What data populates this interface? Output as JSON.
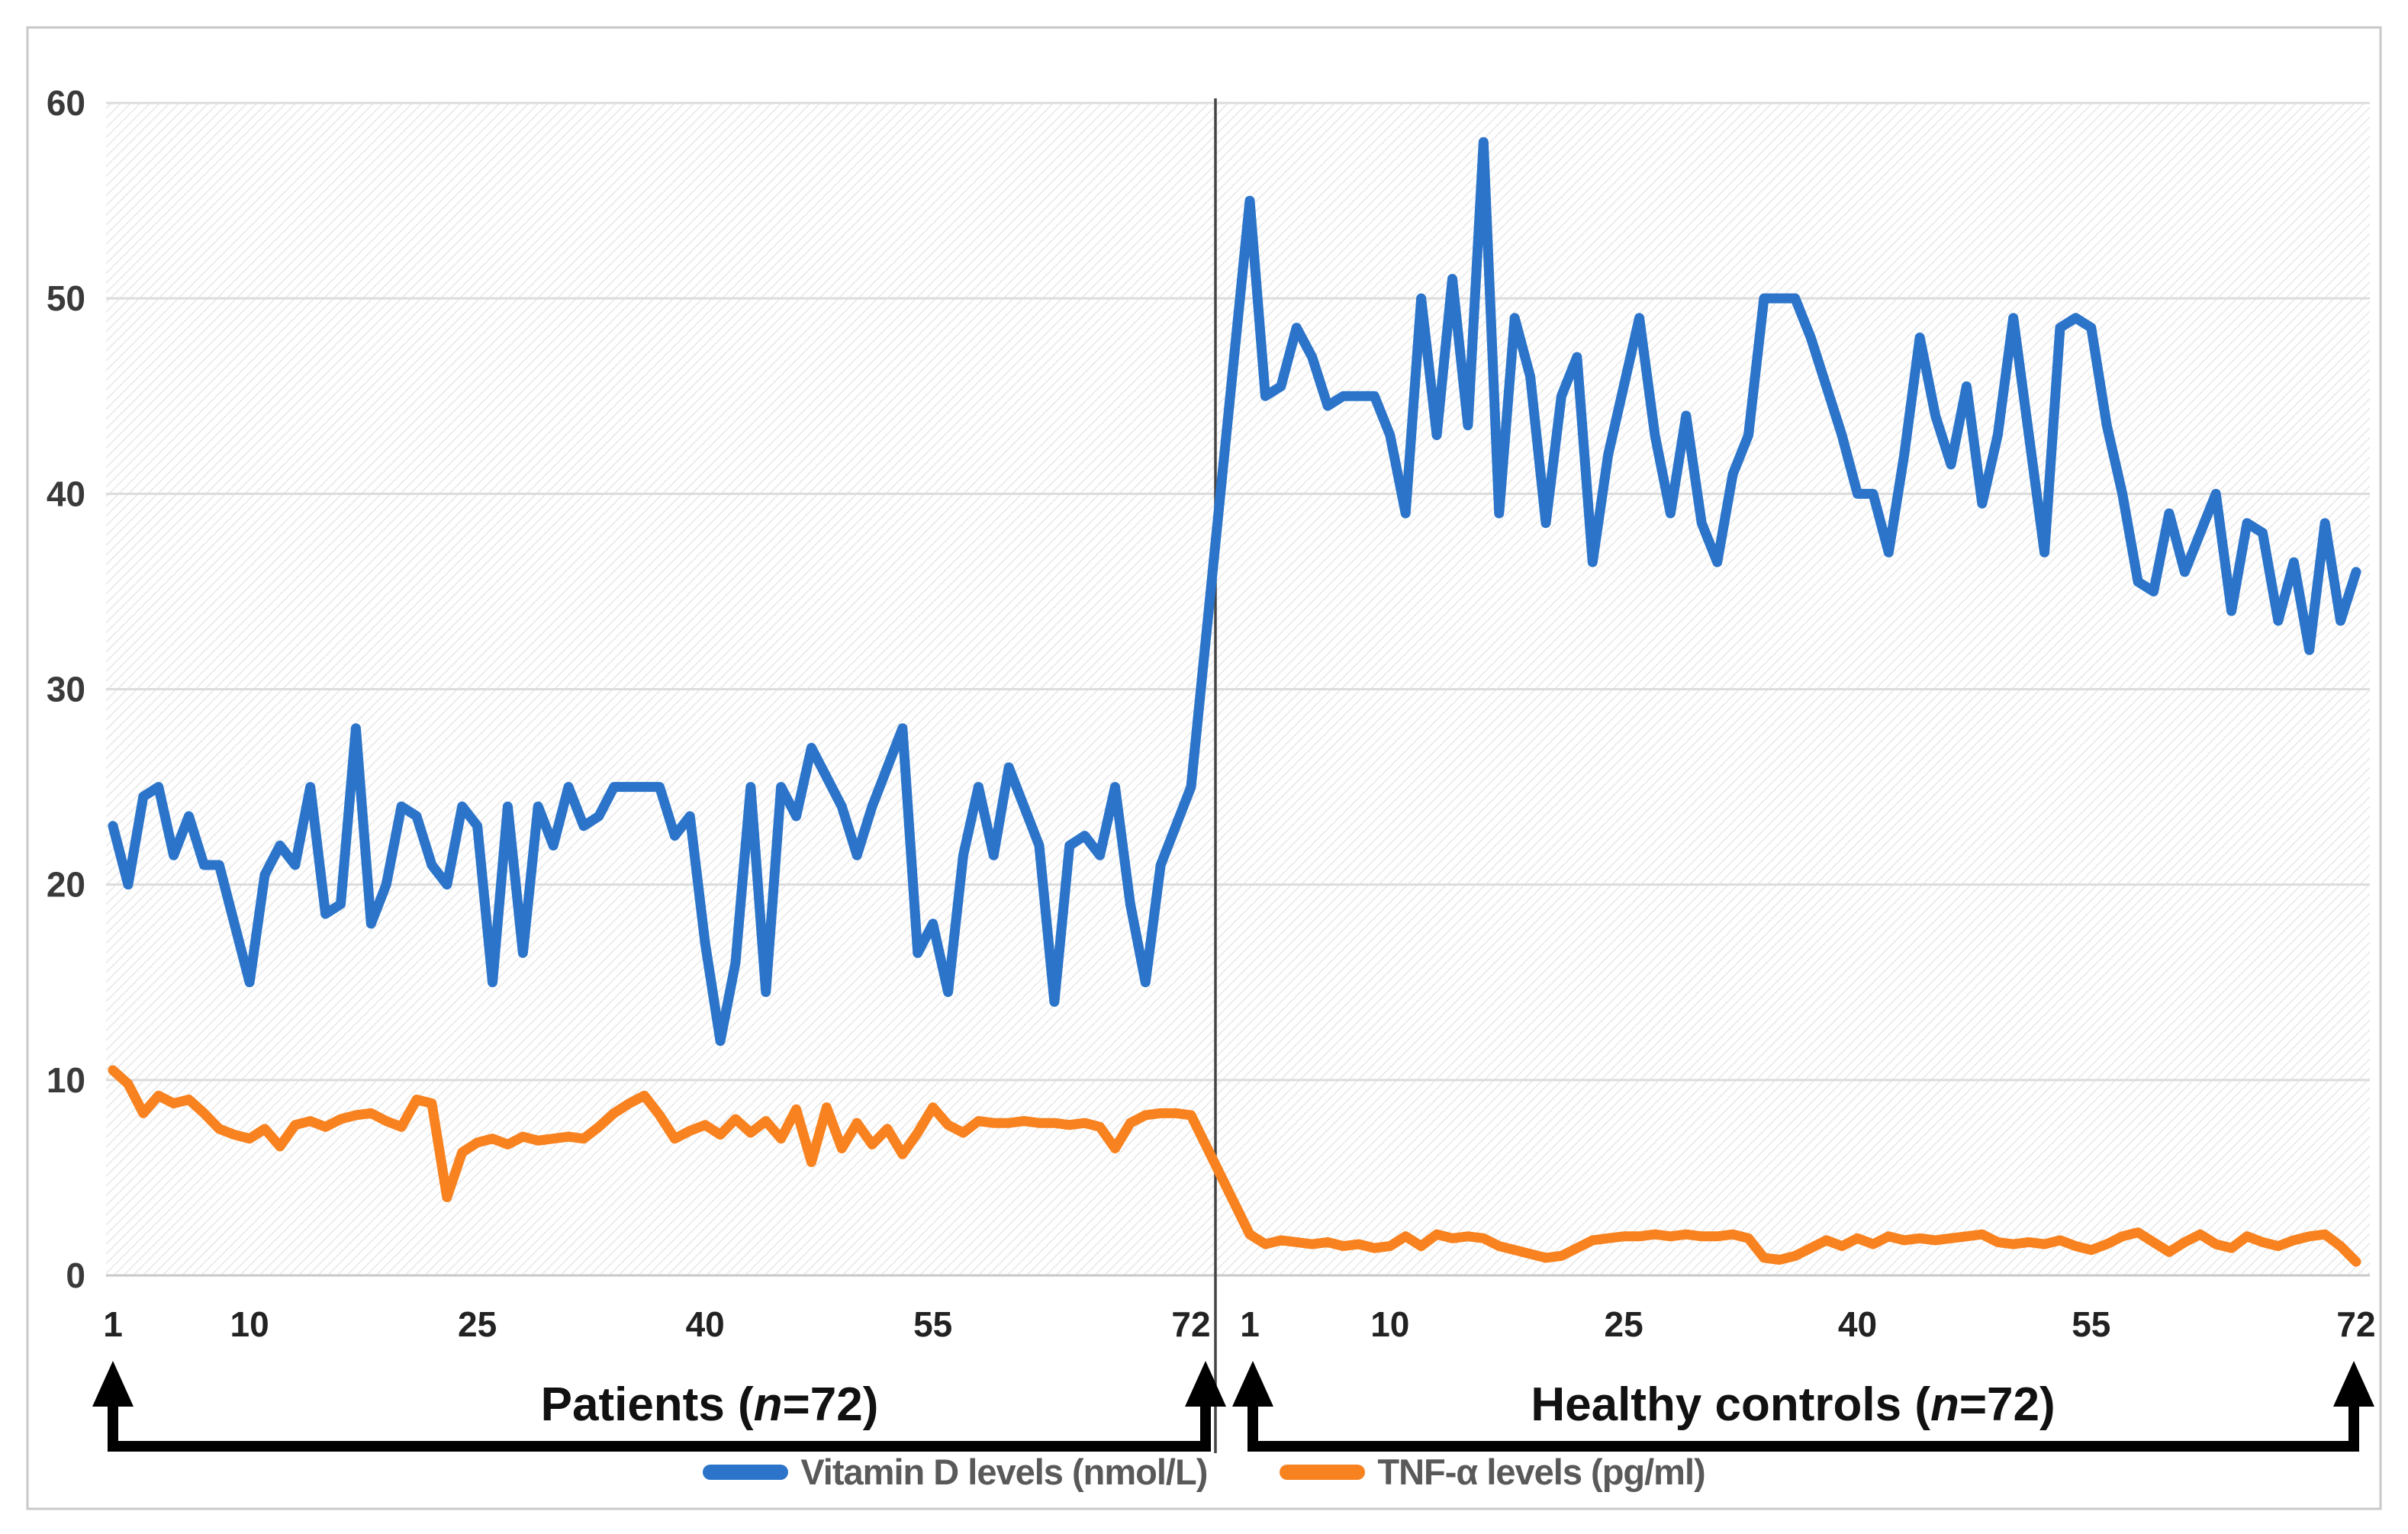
{
  "chart_data": {
    "type": "line",
    "title": "",
    "ylabel": "",
    "xlabel": "",
    "ylim": [
      0,
      60
    ],
    "yticks": [
      60,
      50,
      40,
      30,
      20,
      10,
      0
    ],
    "grid": true,
    "legend_position": "bottom",
    "colors": {
      "vitamin_d": "#2B74C9",
      "tnf": "#F8821F",
      "gridline": "#DCDCDC",
      "hatch": "#E7E7E7",
      "axis_text": "#3A3A3A",
      "group_label_text": "#111111",
      "legend_text": "#595959",
      "divider": "#444444",
      "arrow": "#000000",
      "border": "#C8C8C8"
    },
    "legend": [
      "Vitamin D levels (nmol/L)",
      "TNF-α levels (pg/ml)"
    ],
    "groups": [
      {
        "label_before": "Patients (",
        "label_italic": "n",
        "label_after": "=72)",
        "n": 72,
        "xticks": [
          1,
          10,
          25,
          40,
          55,
          72
        ],
        "series": [
          {
            "name": "Vitamin D levels (nmol/L)",
            "values": [
              23,
              20,
              24.5,
              25,
              21.5,
              23.5,
              21,
              21,
              18,
              15,
              20.5,
              22,
              21,
              25,
              18.5,
              19,
              28,
              18,
              20,
              24,
              23.5,
              21,
              20,
              24,
              23,
              15,
              24,
              16.5,
              24,
              22,
              25,
              23,
              23.5,
              25,
              25,
              25,
              25,
              22.5,
              23.5,
              17,
              12,
              16,
              25,
              14.5,
              25,
              23.5,
              27,
              25.5,
              24,
              21.5,
              24,
              26,
              28,
              16.5,
              18,
              14.5,
              21.5,
              25,
              21.5,
              26,
              24,
              22,
              14,
              22,
              22.5,
              21.5,
              25,
              19,
              15,
              21,
              23,
              25
            ]
          },
          {
            "name": "TNF-α levels (pg/ml)",
            "values": [
              10.5,
              9.8,
              8.3,
              9.2,
              8.8,
              9.0,
              8.3,
              7.5,
              7.2,
              7.0,
              7.5,
              6.6,
              7.7,
              7.9,
              7.6,
              8.0,
              8.2,
              8.3,
              7.9,
              7.6,
              9.0,
              8.8,
              4.0,
              6.3,
              6.8,
              7.0,
              6.7,
              7.1,
              6.9,
              7.0,
              7.1,
              7.0,
              7.6,
              8.3,
              8.8,
              9.2,
              8.2,
              7.0,
              7.4,
              7.7,
              7.2,
              8.0,
              7.3,
              7.9,
              7.0,
              8.5,
              5.8,
              8.6,
              6.5,
              7.8,
              6.7,
              7.5,
              6.2,
              7.3,
              8.6,
              7.7,
              7.3,
              7.9,
              7.8,
              7.8,
              7.9,
              7.8,
              7.8,
              7.7,
              7.8,
              7.6,
              6.5,
              7.8,
              8.2,
              8.3,
              8.3,
              8.2
            ]
          }
        ]
      },
      {
        "label_before": "Healthy controls  (",
        "label_italic": "n",
        "label_after": "=72)",
        "n": 72,
        "xticks": [
          1,
          10,
          25,
          40,
          55,
          72
        ],
        "series": [
          {
            "name": "Vitamin D levels (nmol/L)",
            "values": [
              55,
              45,
              45.5,
              48.5,
              47,
              44.5,
              45,
              45,
              45,
              43,
              39,
              50,
              43,
              51,
              43.5,
              58,
              39,
              49,
              46,
              38.5,
              45,
              47,
              36.5,
              42,
              45.5,
              49,
              43,
              39,
              44,
              38.5,
              36.5,
              41,
              43,
              50,
              50,
              50,
              48,
              45.5,
              43,
              40,
              40,
              37,
              42,
              48,
              44,
              41.5,
              45.5,
              39.5,
              43,
              49,
              43,
              37,
              48.5,
              49,
              48.5,
              43.5,
              40,
              35.5,
              35,
              39,
              36,
              38,
              40,
              34,
              38.5,
              38,
              33.5,
              36.5,
              32,
              38.5,
              33.5,
              36
            ]
          },
          {
            "name": "TNF-α levels (pg/ml)",
            "values": [
              2.1,
              1.6,
              1.8,
              1.7,
              1.6,
              1.7,
              1.5,
              1.6,
              1.4,
              1.5,
              2.0,
              1.5,
              2.1,
              1.9,
              2.0,
              1.9,
              1.5,
              1.3,
              1.1,
              0.9,
              1.0,
              1.4,
              1.8,
              1.9,
              2.0,
              2.0,
              2.1,
              2.0,
              2.1,
              2.0,
              2.0,
              2.1,
              1.9,
              0.9,
              0.8,
              1.0,
              1.4,
              1.8,
              1.5,
              1.9,
              1.6,
              2.0,
              1.8,
              1.9,
              1.8,
              1.9,
              2.0,
              2.1,
              1.7,
              1.6,
              1.7,
              1.6,
              1.8,
              1.5,
              1.3,
              1.6,
              2.0,
              2.2,
              1.7,
              1.2,
              1.7,
              2.1,
              1.6,
              1.4,
              2.0,
              1.7,
              1.5,
              1.8,
              2.0,
              2.1,
              1.5,
              0.7
            ]
          }
        ]
      }
    ]
  }
}
